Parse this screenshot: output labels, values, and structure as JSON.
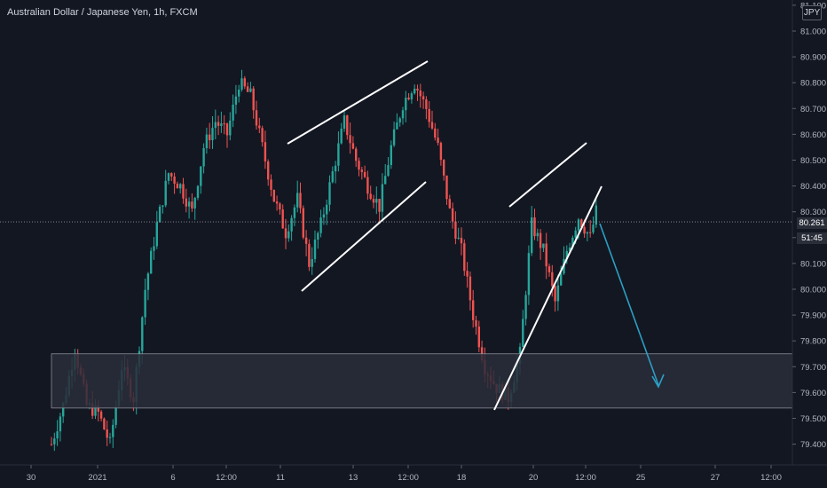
{
  "header": {
    "symbol": "Australian Dollar / Japanese Yen, 1h, FXCM",
    "currency": "JPY"
  },
  "price_scale": {
    "current_price": "80.261",
    "countdown": "51:45"
  },
  "colors": {
    "background": "#131722",
    "up_candle": "#26a69a",
    "down_candle": "#ef5350",
    "trendline": "#ffffff",
    "projection_arrow": "#2b9fc4",
    "zone_fill": "#2a2d3a",
    "axis_text": "#b2b5be"
  },
  "chart_data": {
    "type": "candlestick",
    "symbol": "AUDJPY",
    "timeframe": "1h",
    "y_axis": {
      "min": 79.35,
      "max": 81.12,
      "ticks": [
        "81.100",
        "81.000",
        "80.900",
        "80.800",
        "80.700",
        "80.600",
        "80.500",
        "80.400",
        "80.300",
        "80.200",
        "80.100",
        "80.000",
        "79.900",
        "79.800",
        "79.700",
        "79.600",
        "79.500",
        "79.400"
      ]
    },
    "x_axis": {
      "ticks": [
        "30",
        "2021",
        "6",
        "12:00",
        "11",
        "13",
        "12:00",
        "18",
        "20",
        "12:00",
        "25",
        "27",
        "12:00"
      ]
    },
    "price_path": [
      [
        0,
        79.4
      ],
      [
        2,
        79.55
      ],
      [
        4,
        79.77
      ],
      [
        6,
        79.55
      ],
      [
        8,
        79.52
      ],
      [
        10,
        79.4
      ],
      [
        12,
        79.7
      ],
      [
        14,
        79.58
      ],
      [
        16,
        80.0
      ],
      [
        18,
        80.25
      ],
      [
        20,
        80.45
      ],
      [
        22,
        80.4
      ],
      [
        24,
        80.3
      ],
      [
        26,
        80.55
      ],
      [
        28,
        80.65
      ],
      [
        30,
        80.6
      ],
      [
        32,
        80.8
      ],
      [
        34,
        80.75
      ],
      [
        36,
        80.55
      ],
      [
        38,
        80.35
      ],
      [
        40,
        80.22
      ],
      [
        42,
        80.35
      ],
      [
        44,
        80.1
      ],
      [
        46,
        80.25
      ],
      [
        48,
        80.45
      ],
      [
        50,
        80.65
      ],
      [
        52,
        80.5
      ],
      [
        54,
        80.4
      ],
      [
        56,
        80.32
      ],
      [
        58,
        80.55
      ],
      [
        60,
        80.72
      ],
      [
        62,
        80.8
      ],
      [
        64,
        80.7
      ],
      [
        66,
        80.55
      ],
      [
        68,
        80.3
      ],
      [
        70,
        80.15
      ],
      [
        72,
        79.9
      ],
      [
        74,
        79.7
      ],
      [
        76,
        79.62
      ],
      [
        78,
        79.58
      ],
      [
        80,
        79.75
      ],
      [
        82,
        80.25
      ],
      [
        84,
        80.15
      ],
      [
        86,
        79.95
      ],
      [
        88,
        80.15
      ],
      [
        90,
        80.28
      ],
      [
        92,
        80.2
      ],
      [
        94,
        80.4
      ],
      [
        96,
        80.45
      ],
      [
        98,
        80.4
      ],
      [
        100,
        80.28
      ]
    ],
    "annotations": {
      "support_zone": {
        "from": 79.54,
        "to": 79.75
      },
      "current_price": 80.261
    },
    "grid": false,
    "legend": "none"
  }
}
